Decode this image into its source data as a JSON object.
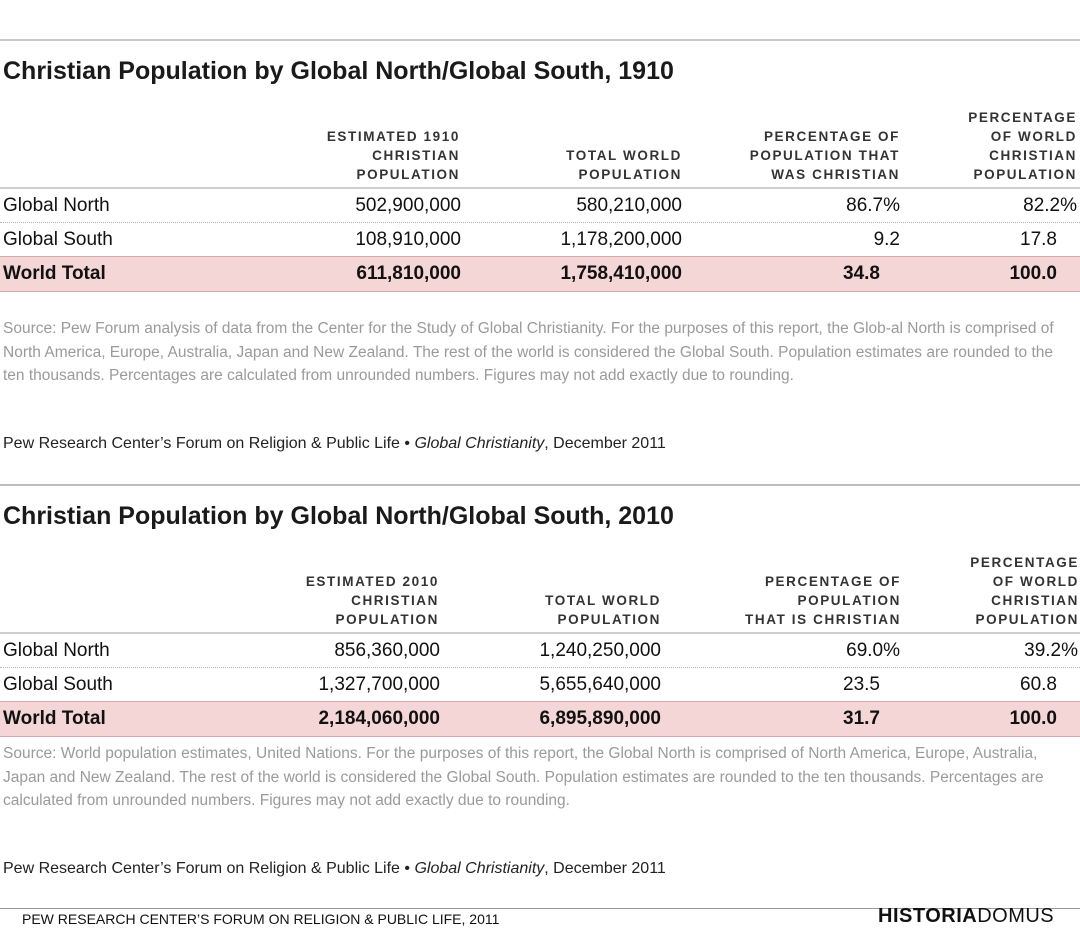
{
  "tables": [
    {
      "title": "Christian Population by Global North/Global South, 1910",
      "headers": {
        "col1": "ESTIMATED 1910\nCHRISTIAN\nPOPULATION",
        "col2": "TOTAL WORLD\nPOPULATION",
        "col3": "PERCENTAGE OF\nPOPULATION THAT\nWAS CHRISTIAN",
        "col4": "PERCENTAGE\nOF WORLD\nCHRISTIAN\nPOPULATION"
      },
      "rows": [
        {
          "name": "Global North",
          "christian": "502,900,000",
          "total": "580,210,000",
          "pct_pop": "86.7%",
          "pct_world": "82.2%"
        },
        {
          "name": "Global South",
          "christian": "108,910,000",
          "total": "1,178,200,000",
          "pct_pop": "9.2",
          "pct_world": "17.8"
        },
        {
          "name": "World Total",
          "christian": "611,810,000",
          "total": "1,758,410,000",
          "pct_pop": "34.8",
          "pct_world": "100.0"
        }
      ],
      "source": "Source: Pew Forum analysis of data from the Center for the Study of Global Christianity. For the purposes of this report, the Glob-al North is comprised of North America, Europe, Australia, Japan and New Zealand. The rest of the world is considered the Global South. Population estimates are rounded to the ten thousands. Percentages are calculated from unrounded numbers. Figures may not add exactly due to rounding.",
      "credit_prefix": "Pew Research Center’s Forum on Religion & Public Life •",
      "credit_title": "Global Christianity",
      "credit_suffix": ", December 2011"
    },
    {
      "title": "Christian Population by Global North/Global South, 2010",
      "headers": {
        "col1": "ESTIMATED 2010\nCHRISTIAN\nPOPULATION",
        "col2": "TOTAL WORLD\nPOPULATION",
        "col3": "PERCENTAGE OF\nPOPULATION\nTHAT IS CHRISTIAN",
        "col4": "PERCENTAGE\nOF WORLD\nCHRISTIAN\nPOPULATION"
      },
      "rows": [
        {
          "name": "Global North",
          "christian": "856,360,000",
          "total": "1,240,250,000",
          "pct_pop": "69.0%",
          "pct_world": "39.2%"
        },
        {
          "name": "Global South",
          "christian": "1,327,700,000",
          "total": "5,655,640,000",
          "pct_pop": "23.5",
          "pct_world": "60.8"
        },
        {
          "name": "World Total",
          "christian": "2,184,060,000",
          "total": "6,895,890,000",
          "pct_pop": "31.7",
          "pct_world": "100.0"
        }
      ],
      "source": "Source: World population estimates, United Nations. For the purposes of this report, the Global North is comprised of North America, Europe, Australia, Japan and New Zealand. The rest of the world is considered the Global South. Population estimates are rounded to the ten thousands. Percentages are calculated from unrounded numbers. Figures may not add exactly due to rounding.",
      "credit_prefix": "Pew Research Center’s Forum on Religion & Public Life •",
      "credit_title": "Global Christianity",
      "credit_suffix": ", December 2011"
    }
  ],
  "footer": {
    "text": "PEW RESEARCH CENTER’S FORUM ON RELIGION & PUBLIC LIFE, 2011",
    "logo_bold": "HISTORIA",
    "logo_light": "DOMUS"
  }
}
